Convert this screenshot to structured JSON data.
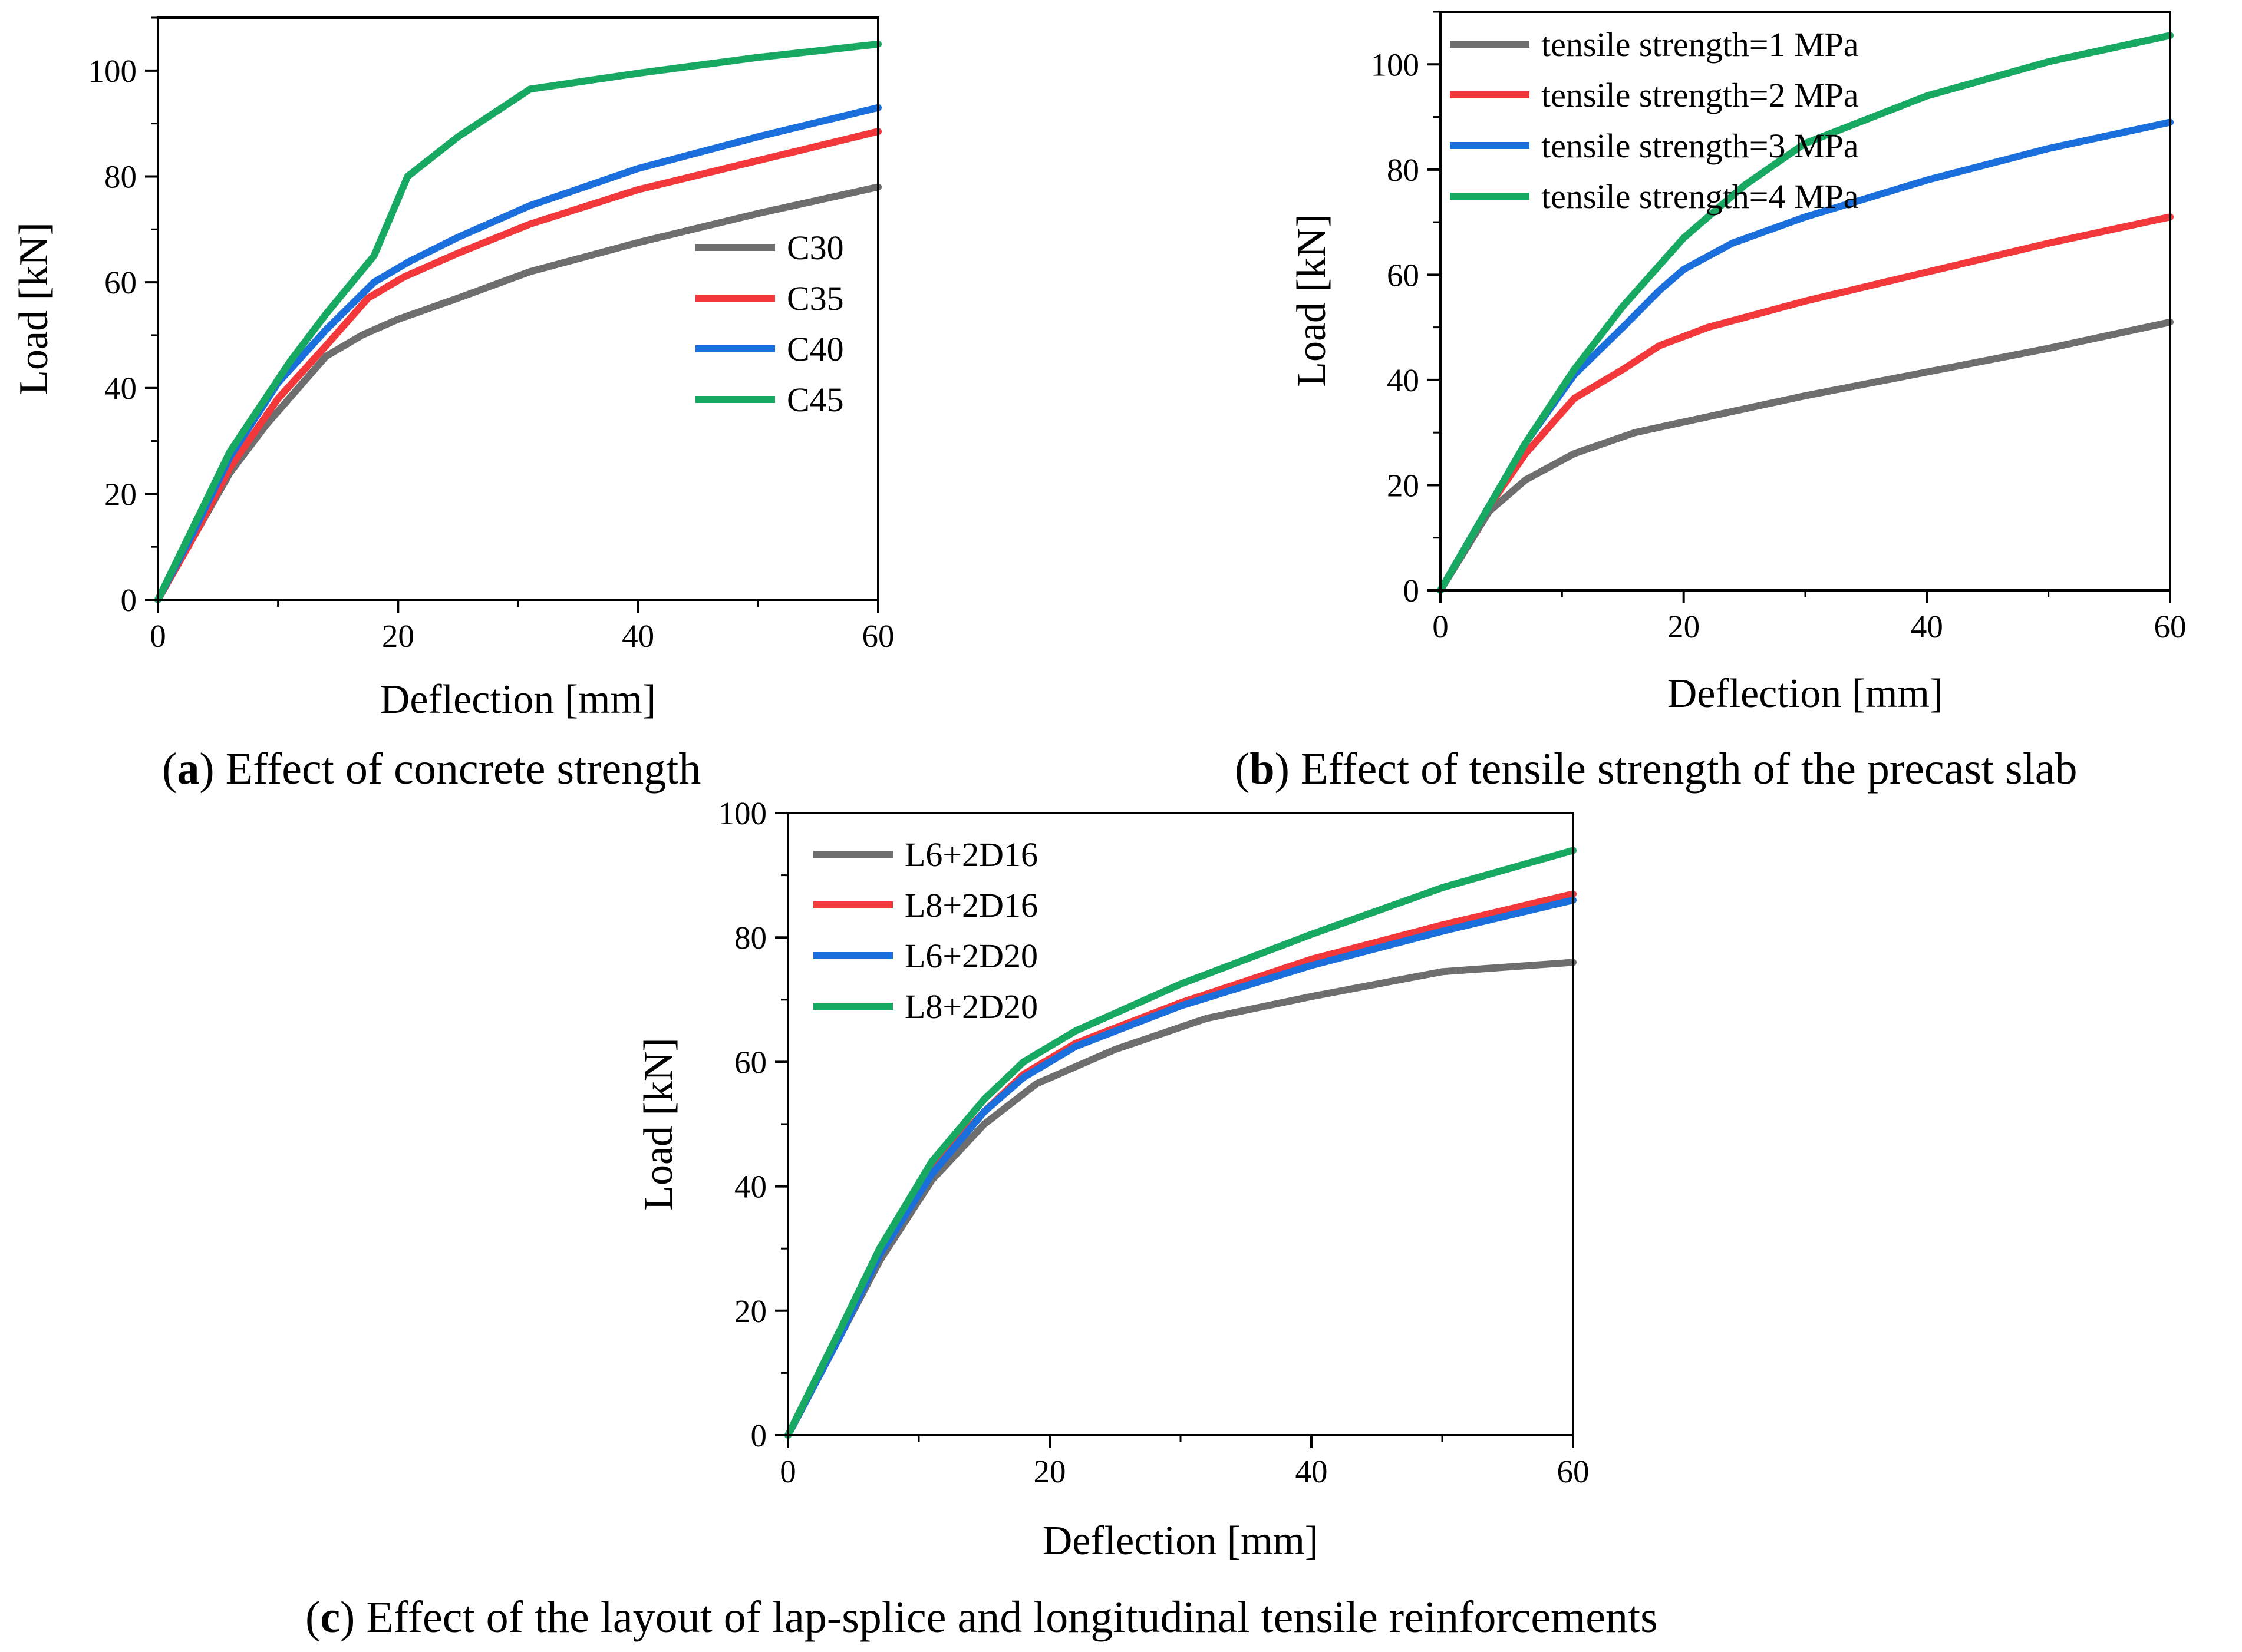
{
  "colors": {
    "gray": "#6e6e6e",
    "red": "#f2383a",
    "blue": "#1a6fdc",
    "green": "#17a862"
  },
  "chart_data": [
    {
      "id": "a",
      "type": "line",
      "caption_label": "a",
      "caption_text": "Effect of concrete strength",
      "xlabel": "Deflection [mm]",
      "ylabel": "Load [kN]",
      "xlim": [
        0,
        60
      ],
      "ylim": [
        0,
        110
      ],
      "xticks": [
        0,
        20,
        40,
        60
      ],
      "yticks": [
        0,
        20,
        40,
        60,
        80,
        100
      ],
      "legend_position": "middle-right",
      "series": [
        {
          "name": "C30",
          "color": "#6e6e6e",
          "points": [
            [
              0,
              0
            ],
            [
              3,
              12
            ],
            [
              6,
              24
            ],
            [
              9,
              33
            ],
            [
              14,
              46
            ],
            [
              17,
              50
            ],
            [
              20,
              53
            ],
            [
              25,
              57
            ],
            [
              31,
              62
            ],
            [
              40,
              67.5
            ],
            [
              50,
              73
            ],
            [
              60,
              78
            ]
          ]
        },
        {
          "name": "C35",
          "color": "#f2383a",
          "points": [
            [
              0,
              0
            ],
            [
              3,
              12
            ],
            [
              6,
              25
            ],
            [
              10,
              38
            ],
            [
              14,
              48
            ],
            [
              17.5,
              57
            ],
            [
              20.5,
              61
            ],
            [
              25,
              65.5
            ],
            [
              31,
              71
            ],
            [
              40,
              77.5
            ],
            [
              50,
              83
            ],
            [
              60,
              88.5
            ]
          ]
        },
        {
          "name": "C40",
          "color": "#1a6fdc",
          "points": [
            [
              0,
              0
            ],
            [
              3,
              13
            ],
            [
              6,
              27
            ],
            [
              10,
              41
            ],
            [
              14,
              51
            ],
            [
              18,
              60
            ],
            [
              21,
              64
            ],
            [
              25,
              68.5
            ],
            [
              31,
              74.5
            ],
            [
              40,
              81.5
            ],
            [
              50,
              87.5
            ],
            [
              60,
              93
            ]
          ]
        },
        {
          "name": "C45",
          "color": "#17a862",
          "points": [
            [
              0,
              0
            ],
            [
              3,
              14
            ],
            [
              6,
              28
            ],
            [
              11,
              45
            ],
            [
              14,
              54
            ],
            [
              18,
              65
            ],
            [
              20.8,
              80
            ],
            [
              25,
              87.5
            ],
            [
              31,
              96.5
            ],
            [
              40,
              99.5
            ],
            [
              50,
              102.5
            ],
            [
              60,
              105
            ]
          ]
        }
      ]
    },
    {
      "id": "b",
      "type": "line",
      "caption_label": "b",
      "caption_text": "Effect of tensile strength of the precast slab",
      "xlabel": "Deflection  [mm]",
      "ylabel": "Load [kN]",
      "xlim": [
        0,
        60
      ],
      "ylim": [
        0,
        110
      ],
      "xticks": [
        0,
        20,
        40,
        60
      ],
      "yticks": [
        0,
        20,
        40,
        60,
        80,
        100
      ],
      "legend_position": "top-left",
      "series": [
        {
          "name": "tensile strength=1 MPa",
          "color": "#6e6e6e",
          "points": [
            [
              0,
              0
            ],
            [
              4,
              15
            ],
            [
              7,
              21
            ],
            [
              11,
              26
            ],
            [
              16,
              30
            ],
            [
              22,
              33
            ],
            [
              30,
              37
            ],
            [
              40,
              41.5
            ],
            [
              50,
              46
            ],
            [
              60,
              51
            ]
          ]
        },
        {
          "name": "tensile strength=2 MPa",
          "color": "#f2383a",
          "points": [
            [
              0,
              0
            ],
            [
              4,
              16
            ],
            [
              7,
              26
            ],
            [
              11,
              36.5
            ],
            [
              15,
              42
            ],
            [
              18,
              46.5
            ],
            [
              22,
              50
            ],
            [
              30,
              55
            ],
            [
              40,
              60.5
            ],
            [
              50,
              66
            ],
            [
              60,
              71
            ]
          ]
        },
        {
          "name": "tensile strength=3 MPa",
          "color": "#1a6fdc",
          "points": [
            [
              0,
              0
            ],
            [
              4,
              16
            ],
            [
              7,
              28
            ],
            [
              11,
              41
            ],
            [
              15,
              50
            ],
            [
              18,
              57
            ],
            [
              20,
              61
            ],
            [
              24,
              66
            ],
            [
              30,
              71
            ],
            [
              40,
              78
            ],
            [
              50,
              84
            ],
            [
              60,
              89
            ]
          ]
        },
        {
          "name": "tensile strength=4 MPa",
          "color": "#17a862",
          "points": [
            [
              0,
              0
            ],
            [
              4,
              16
            ],
            [
              7,
              28
            ],
            [
              11,
              42
            ],
            [
              15,
              54
            ],
            [
              20,
              67
            ],
            [
              25,
              77
            ],
            [
              30,
              85
            ],
            [
              40,
              94
            ],
            [
              50,
              100.5
            ],
            [
              60,
              105.5
            ]
          ]
        }
      ]
    },
    {
      "id": "c",
      "type": "line",
      "caption_label": "c",
      "caption_text": "Effect of the layout of lap-splice and longitudinal tensile reinforcements",
      "xlabel": "Deflection [mm]",
      "ylabel": "Load [kN]",
      "xlim": [
        0,
        60
      ],
      "ylim": [
        0,
        100
      ],
      "xticks": [
        0,
        20,
        40,
        60
      ],
      "yticks": [
        0,
        20,
        40,
        60,
        80,
        100
      ],
      "legend_position": "top-left",
      "series": [
        {
          "name": "L6+2D16",
          "color": "#6e6e6e",
          "points": [
            [
              0,
              0
            ],
            [
              4,
              16
            ],
            [
              7,
              28
            ],
            [
              11,
              41
            ],
            [
              15,
              50
            ],
            [
              19,
              56.5
            ],
            [
              25,
              62
            ],
            [
              32,
              67
            ],
            [
              40,
              70.5
            ],
            [
              50,
              74.5
            ],
            [
              60,
              76
            ]
          ]
        },
        {
          "name": "L8+2D16",
          "color": "#f2383a",
          "points": [
            [
              0,
              0
            ],
            [
              4,
              16
            ],
            [
              7,
              29
            ],
            [
              11,
              43
            ],
            [
              15,
              52
            ],
            [
              18,
              58
            ],
            [
              22,
              63
            ],
            [
              30,
              69.5
            ],
            [
              40,
              76.5
            ],
            [
              50,
              82
            ],
            [
              60,
              87
            ]
          ]
        },
        {
          "name": "L6+2D20",
          "color": "#1a6fdc",
          "points": [
            [
              0,
              0
            ],
            [
              4,
              16
            ],
            [
              7,
              29
            ],
            [
              11,
              42
            ],
            [
              15,
              52
            ],
            [
              18,
              57.5
            ],
            [
              22,
              62.5
            ],
            [
              30,
              69
            ],
            [
              40,
              75.5
            ],
            [
              50,
              81
            ],
            [
              60,
              86
            ]
          ]
        },
        {
          "name": "L8+2D20",
          "color": "#17a862",
          "points": [
            [
              0,
              0
            ],
            [
              4,
              17
            ],
            [
              7,
              30
            ],
            [
              11,
              44
            ],
            [
              15,
              54
            ],
            [
              18,
              60
            ],
            [
              22,
              65
            ],
            [
              30,
              72.5
            ],
            [
              40,
              80.5
            ],
            [
              50,
              88
            ],
            [
              60,
              94
            ]
          ]
        }
      ]
    }
  ]
}
